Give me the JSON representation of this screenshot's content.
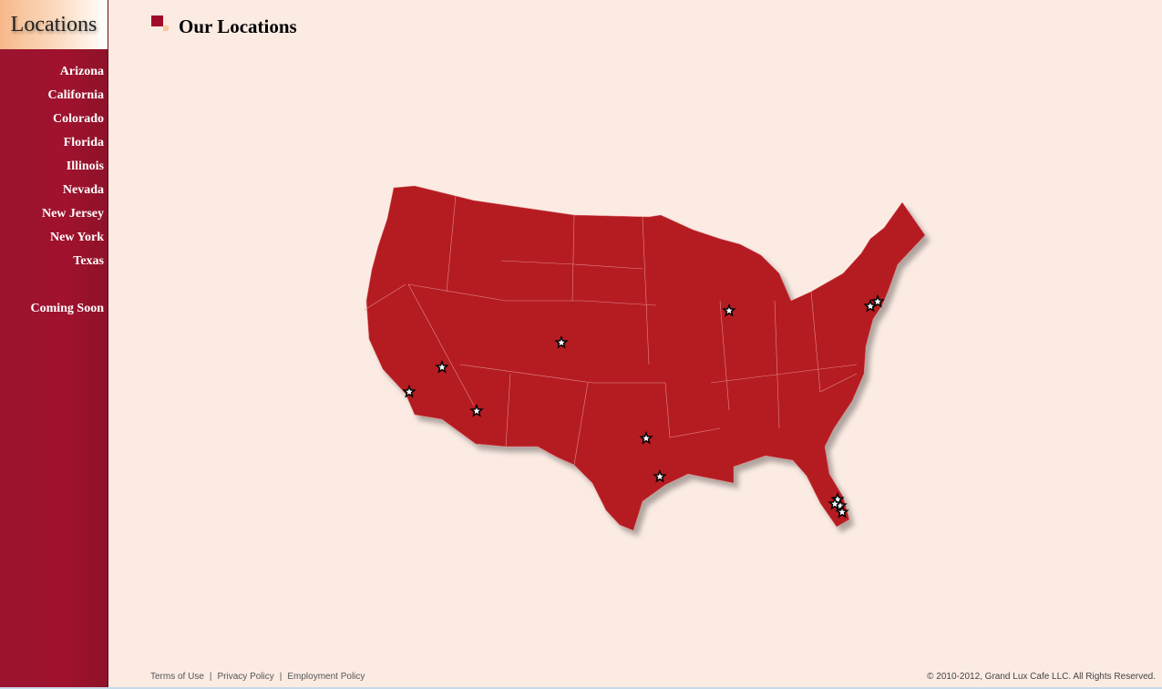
{
  "sidebar": {
    "heading": "Locations",
    "items": [
      {
        "label": "Arizona"
      },
      {
        "label": "California"
      },
      {
        "label": "Colorado"
      },
      {
        "label": "Florida"
      },
      {
        "label": "Illinois"
      },
      {
        "label": "Nevada"
      },
      {
        "label": "New Jersey"
      },
      {
        "label": "New York"
      },
      {
        "label": "Texas"
      }
    ],
    "coming_soon": "Coming Soon"
  },
  "page": {
    "title": "Our Locations"
  },
  "map": {
    "fill": "#b51b22",
    "marker_icon": "star-icon"
  },
  "footer": {
    "links": [
      "Terms of Use",
      "Privacy Policy",
      "Employment Policy"
    ],
    "copyright": "© 2010-2012, Grand Lux Cafe LLC. All Rights Reserved."
  }
}
